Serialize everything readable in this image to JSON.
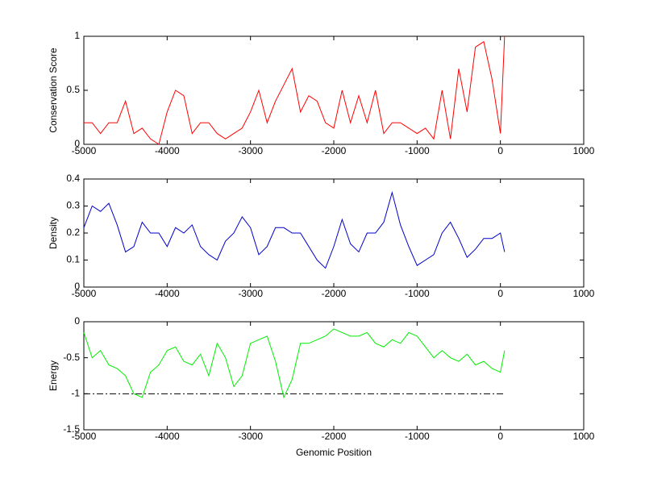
{
  "chart_data": [
    {
      "type": "line",
      "ylabel": "Conservation Score",
      "x": [
        -5000,
        -4900,
        -4800,
        -4700,
        -4600,
        -4500,
        -4400,
        -4300,
        -4200,
        -4100,
        -4000,
        -3900,
        -3800,
        -3700,
        -3600,
        -3500,
        -3400,
        -3300,
        -3200,
        -3100,
        -3000,
        -2900,
        -2800,
        -2700,
        -2600,
        -2500,
        -2400,
        -2300,
        -2200,
        -2100,
        -2000,
        -1900,
        -1800,
        -1700,
        -1600,
        -1500,
        -1400,
        -1300,
        -1200,
        -1100,
        -1000,
        -900,
        -800,
        -700,
        -600,
        -500,
        -400,
        -300,
        -200,
        -100,
        0,
        50
      ],
      "values": [
        0.2,
        0.2,
        0.1,
        0.2,
        0.2,
        0.4,
        0.1,
        0.15,
        0.05,
        0,
        0.3,
        0.5,
        0.45,
        0.1,
        0.2,
        0.2,
        0.1,
        0.05,
        0.1,
        0.15,
        0.3,
        0.5,
        0.2,
        0.4,
        0.55,
        0.7,
        0.3,
        0.45,
        0.4,
        0.2,
        0.15,
        0.5,
        0.2,
        0.45,
        0.2,
        0.5,
        0.1,
        0.2,
        0.2,
        0.15,
        0.1,
        0.15,
        0.05,
        0.5,
        0.05,
        0.7,
        0.3,
        0.9,
        0.95,
        0.6,
        0.1,
        1
      ],
      "color": "#ff0000",
      "xlim": [
        -5000,
        1000
      ],
      "xticks": [
        -5000,
        -4000,
        -3000,
        -2000,
        -1000,
        0,
        1000
      ],
      "ylim": [
        0,
        1
      ],
      "yticks": [
        0,
        0.5,
        1
      ]
    },
    {
      "type": "line",
      "ylabel": "Density",
      "x": [
        -5000,
        -4900,
        -4800,
        -4700,
        -4600,
        -4500,
        -4400,
        -4300,
        -4200,
        -4100,
        -4000,
        -3900,
        -3800,
        -3700,
        -3600,
        -3500,
        -3400,
        -3300,
        -3200,
        -3100,
        -3000,
        -2900,
        -2800,
        -2700,
        -2600,
        -2500,
        -2400,
        -2300,
        -2200,
        -2100,
        -2000,
        -1900,
        -1800,
        -1700,
        -1600,
        -1500,
        -1400,
        -1300,
        -1200,
        -1100,
        -1000,
        -900,
        -800,
        -700,
        -600,
        -500,
        -400,
        -300,
        -200,
        -100,
        0,
        50
      ],
      "values": [
        0.22,
        0.3,
        0.28,
        0.31,
        0.23,
        0.13,
        0.15,
        0.24,
        0.2,
        0.2,
        0.15,
        0.22,
        0.2,
        0.23,
        0.15,
        0.12,
        0.1,
        0.17,
        0.2,
        0.26,
        0.22,
        0.12,
        0.15,
        0.22,
        0.22,
        0.2,
        0.2,
        0.15,
        0.1,
        0.07,
        0.15,
        0.25,
        0.16,
        0.13,
        0.2,
        0.2,
        0.24,
        0.35,
        0.23,
        0.15,
        0.08,
        0.1,
        0.12,
        0.2,
        0.24,
        0.18,
        0.11,
        0.14,
        0.18,
        0.18,
        0.2,
        0.13
      ],
      "color": "#0000cc",
      "xlim": [
        -5000,
        1000
      ],
      "xticks": [
        -5000,
        -4000,
        -3000,
        -2000,
        -1000,
        0,
        1000
      ],
      "ylim": [
        0,
        0.4
      ],
      "yticks": [
        0,
        0.1,
        0.2,
        0.3,
        0.4
      ]
    },
    {
      "type": "line",
      "ylabel": "Energy",
      "xlabel": "Genomic Position",
      "x": [
        -5000,
        -4900,
        -4800,
        -4700,
        -4600,
        -4500,
        -4400,
        -4300,
        -4200,
        -4100,
        -4000,
        -3900,
        -3800,
        -3700,
        -3600,
        -3500,
        -3400,
        -3300,
        -3200,
        -3100,
        -3000,
        -2900,
        -2800,
        -2700,
        -2600,
        -2500,
        -2400,
        -2300,
        -2200,
        -2100,
        -2000,
        -1900,
        -1800,
        -1700,
        -1600,
        -1500,
        -1400,
        -1300,
        -1200,
        -1100,
        -1000,
        -900,
        -800,
        -700,
        -600,
        -500,
        -400,
        -300,
        -200,
        -100,
        0,
        50
      ],
      "values": [
        -0.15,
        -0.5,
        -0.4,
        -0.6,
        -0.65,
        -0.75,
        -1,
        -1.05,
        -0.7,
        -0.6,
        -0.4,
        -0.35,
        -0.55,
        -0.6,
        -0.45,
        -0.75,
        -0.3,
        -0.5,
        -0.9,
        -0.75,
        -0.3,
        -0.25,
        -0.2,
        -0.55,
        -1.05,
        -0.8,
        -0.3,
        -0.3,
        -0.25,
        -0.2,
        -0.1,
        -0.15,
        -0.2,
        -0.2,
        -0.15,
        -0.3,
        -0.35,
        -0.25,
        -0.3,
        -0.15,
        -0.2,
        -0.35,
        -0.5,
        -0.4,
        -0.5,
        -0.55,
        -0.45,
        -0.6,
        -0.55,
        -0.65,
        -0.7,
        -0.4
      ],
      "color": "#00ee00",
      "hline": -1,
      "xlim": [
        -5000,
        1000
      ],
      "xticks": [
        -5000,
        -4000,
        -3000,
        -2000,
        -1000,
        0,
        1000
      ],
      "ylim": [
        -1.5,
        0
      ],
      "yticks": [
        -1.5,
        -1,
        -0.5,
        0
      ]
    }
  ]
}
